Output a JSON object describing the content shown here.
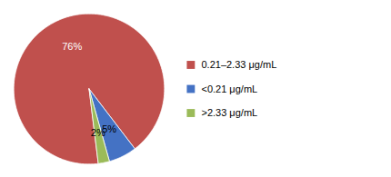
{
  "chart_data": {
    "type": "pie",
    "categories": [
      "0.21–2.33 μg/mL",
      "<0.21 μg/mL",
      ">2.33 μg/mL"
    ],
    "values": [
      76,
      5,
      2
    ],
    "value_labels": [
      "76%",
      "5%",
      "2%"
    ],
    "colors": [
      "#C0504D",
      "#4472C4",
      "#9BBB59"
    ],
    "data_labels": true,
    "legend": "right"
  }
}
